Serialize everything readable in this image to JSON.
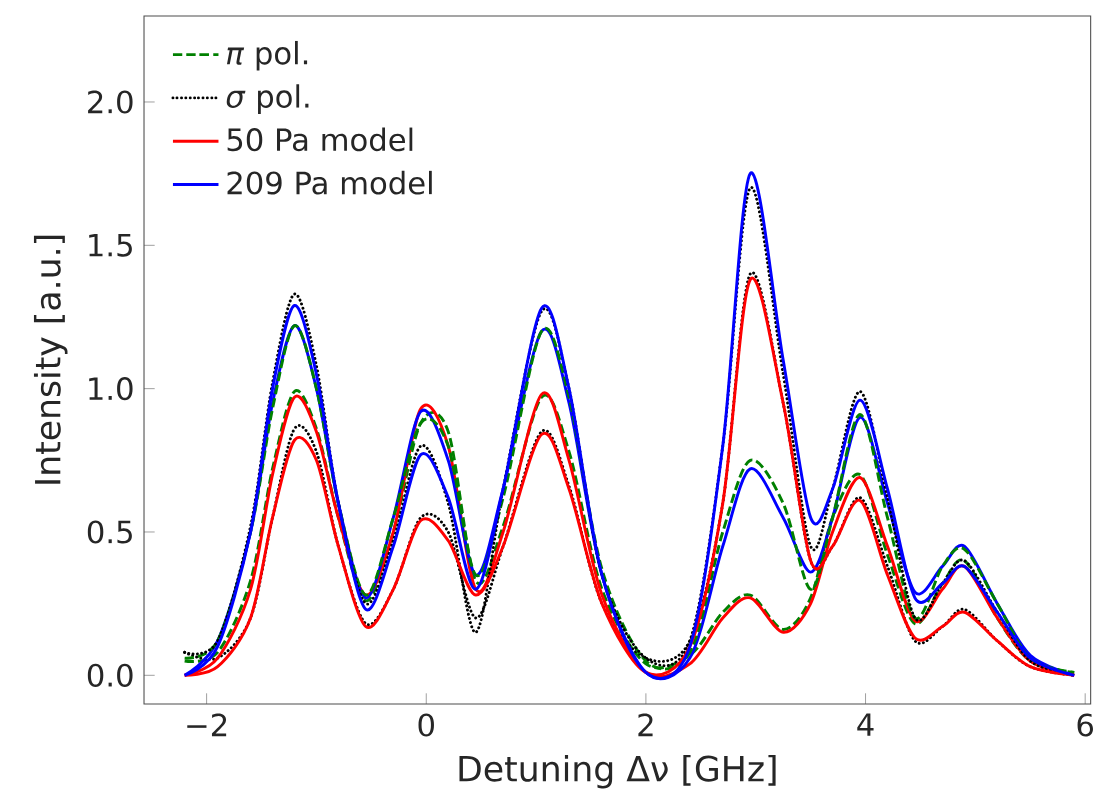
{
  "chart_data": {
    "type": "line",
    "xlabel": "Detuning Δν [GHz]",
    "ylabel": "Intensity [a.u.]",
    "xlim": [
      -2.57,
      6.05
    ],
    "ylim": [
      -0.1,
      2.3
    ],
    "xticks": [
      {
        "value": -2,
        "label": "−2"
      },
      {
        "value": 0,
        "label": "0"
      },
      {
        "value": 2,
        "label": "2"
      },
      {
        "value": 4,
        "label": "4"
      },
      {
        "value": 6,
        "label": "6"
      }
    ],
    "yticks": [
      {
        "value": 0,
        "label": "0.0"
      },
      {
        "value": 0.5,
        "label": "0.5"
      },
      {
        "value": 1,
        "label": "1.0"
      },
      {
        "value": 1.5,
        "label": "1.5"
      },
      {
        "value": 2,
        "label": "2.0"
      }
    ],
    "grid": false,
    "legend": "top left",
    "x": [
      -2.2,
      -1.9,
      -1.6,
      -1.4,
      -1.2,
      -1.0,
      -0.8,
      -0.55,
      -0.3,
      -0.05,
      0.2,
      0.45,
      0.7,
      1.05,
      1.3,
      1.6,
      2.0,
      2.4,
      2.7,
      2.95,
      3.25,
      3.5,
      3.7,
      3.95,
      4.2,
      4.45,
      4.7,
      4.9,
      5.2,
      5.5,
      5.9
    ],
    "series": [
      {
        "name": "*π* pol.",
        "line_style": "dashed",
        "color": "#008000",
        "values": [
          0.05,
          0.08,
          0.33,
          0.72,
          0.99,
          0.86,
          0.55,
          0.26,
          0.5,
          0.88,
          0.85,
          0.33,
          0.52,
          0.97,
          0.78,
          0.3,
          0.04,
          0.07,
          0.22,
          0.28,
          0.16,
          0.27,
          0.55,
          0.7,
          0.42,
          0.18,
          0.32,
          0.4,
          0.2,
          0.05,
          0.01
        ]
      },
      {
        "name": "*σ* pol.",
        "line_style": "dotted",
        "color": "#000000",
        "values": [
          0.08,
          0.06,
          0.2,
          0.55,
          0.86,
          0.78,
          0.45,
          0.18,
          0.3,
          0.55,
          0.5,
          0.2,
          0.45,
          0.85,
          0.66,
          0.25,
          0.06,
          0.12,
          0.6,
          1.4,
          0.95,
          0.4,
          0.45,
          0.62,
          0.38,
          0.12,
          0.17,
          0.23,
          0.12,
          0.03,
          0.0
        ]
      },
      {
        "name": "50 Pa model",
        "line_style": "solid",
        "color": "#ff0000",
        "values": [
          0.0,
          0.06,
          0.3,
          0.7,
          0.97,
          0.85,
          0.55,
          0.28,
          0.5,
          0.93,
          0.8,
          0.3,
          0.5,
          0.98,
          0.75,
          0.28,
          0.01,
          0.04,
          0.2,
          0.27,
          0.15,
          0.25,
          0.5,
          0.69,
          0.45,
          0.19,
          0.3,
          0.38,
          0.2,
          0.05,
          0.0
        ]
      },
      {
        "name": "209 Pa model",
        "line_style": "solid",
        "color": "#0000ff",
        "values": [
          0.0,
          0.12,
          0.5,
          0.95,
          1.22,
          1.0,
          0.6,
          0.27,
          0.55,
          0.92,
          0.75,
          0.35,
          0.65,
          1.2,
          0.95,
          0.35,
          0.01,
          0.06,
          0.45,
          0.72,
          0.55,
          0.36,
          0.55,
          0.9,
          0.6,
          0.29,
          0.38,
          0.45,
          0.25,
          0.07,
          0.0
        ]
      },
      {
        "line_style": "dashed",
        "color": "#008000",
        "values": [
          0.06,
          0.12,
          0.5,
          0.93,
          1.22,
          1.0,
          0.6,
          0.28,
          0.55,
          0.88,
          0.8,
          0.35,
          0.62,
          1.2,
          0.97,
          0.37,
          0.05,
          0.08,
          0.5,
          0.75,
          0.6,
          0.3,
          0.55,
          0.91,
          0.55,
          0.2,
          0.38,
          0.44,
          0.25,
          0.06,
          0.01
        ]
      },
      {
        "line_style": "dotted",
        "color": "#000000",
        "values": [
          0.08,
          0.12,
          0.52,
          1.02,
          1.33,
          1.08,
          0.6,
          0.25,
          0.47,
          0.8,
          0.6,
          0.15,
          0.65,
          1.27,
          1.0,
          0.35,
          0.06,
          0.12,
          0.8,
          1.7,
          1.05,
          0.45,
          0.65,
          0.99,
          0.62,
          0.2,
          0.32,
          0.4,
          0.22,
          0.05,
          0.0
        ]
      },
      {
        "line_style": "solid",
        "color": "#ff0000",
        "values": [
          0.0,
          0.03,
          0.2,
          0.55,
          0.82,
          0.75,
          0.45,
          0.17,
          0.3,
          0.54,
          0.47,
          0.28,
          0.45,
          0.84,
          0.65,
          0.25,
          0.01,
          0.1,
          0.6,
          1.38,
          0.95,
          0.4,
          0.45,
          0.61,
          0.35,
          0.13,
          0.17,
          0.22,
          0.12,
          0.03,
          0.0
        ]
      },
      {
        "line_style": "solid",
        "color": "#0000ff",
        "values": [
          0.0,
          0.1,
          0.5,
          1.0,
          1.29,
          1.05,
          0.6,
          0.23,
          0.45,
          0.77,
          0.62,
          0.3,
          0.65,
          1.28,
          1.0,
          0.35,
          0.01,
          0.1,
          0.8,
          1.75,
          1.1,
          0.55,
          0.65,
          0.96,
          0.65,
          0.27,
          0.32,
          0.38,
          0.22,
          0.06,
          0.0
        ]
      }
    ]
  }
}
